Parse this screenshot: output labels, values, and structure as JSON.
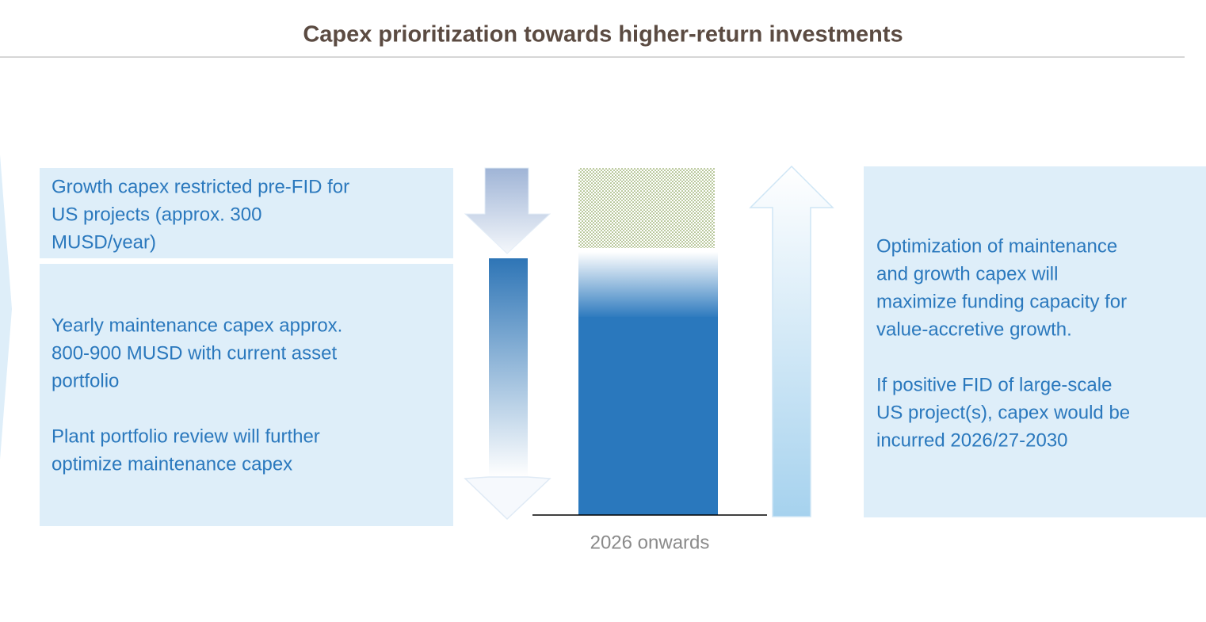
{
  "header": {
    "title": "Capex prioritization towards higher-return investments"
  },
  "left_boxes": [
    {
      "paragraphs": [
        [
          "Growth capex restricted pre-FID for",
          "US projects (approx. 300",
          "MUSD/year)"
        ]
      ]
    },
    {
      "paragraphs": [
        [
          "Yearly maintenance capex approx.",
          "800-900 MUSD with current asset",
          "portfolio"
        ],
        [
          "Plant portfolio review will further",
          "optimize maintenance capex"
        ]
      ]
    }
  ],
  "bar": {
    "label": "2026 onwards"
  },
  "right_box": {
    "paragraphs": [
      [
        "Optimization of maintenance",
        "and growth capex will",
        "maximize funding capacity for",
        "value-accretive growth."
      ],
      [
        "If positive FID of large-scale",
        "US project(s), capex would be",
        "incurred 2026/27-2030"
      ]
    ]
  }
}
